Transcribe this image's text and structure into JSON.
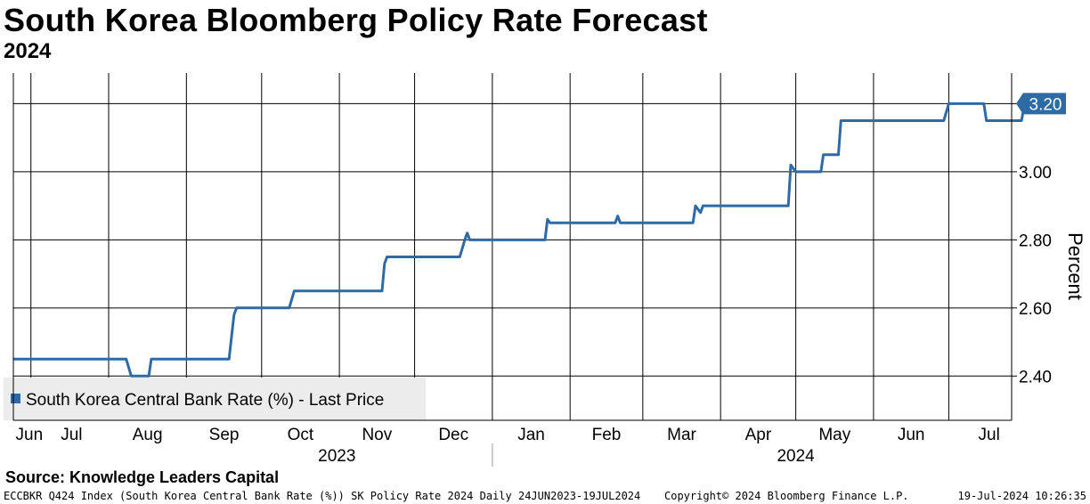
{
  "header": {
    "title": "South Korea Bloomberg Policy Rate Forecast",
    "subtitle": "2024"
  },
  "source": "Source: Knowledge Leaders Capital",
  "footer": {
    "left": "ECCBKR Q424 Index (South Korea Central Bank Rate (%)) SK Policy Rate 2024  Daily 24JUN2023-19JUL2024",
    "center": "Copyright© 2024 Bloomberg Finance L.P.",
    "right": "19-Jul-2024 10:26:35"
  },
  "colors": {
    "line": "#2e6aa4",
    "grid": "#000000",
    "last_label_bg": "#2e6aa4",
    "legend_bg": "#ececec"
  },
  "chart_data": {
    "type": "line",
    "title": "South Korea Bloomberg Policy Rate Forecast",
    "subtitle": "2024",
    "ylabel": "Percent",
    "ylim": [
      2.27,
      3.29
    ],
    "yticks": [
      2.4,
      2.6,
      2.8,
      3.0,
      3.2
    ],
    "ytick_labels": [
      "2.40",
      "2.60",
      "2.80",
      "3.00",
      "3.20"
    ],
    "xlim": [
      "2023-06-24",
      "2024-07-21"
    ],
    "month_ticks": [
      {
        "label": "Jun",
        "date": "2023-07-01"
      },
      {
        "label": "Jul",
        "date": "2023-08-01"
      },
      {
        "label": "Aug",
        "date": "2023-09-01"
      },
      {
        "label": "Sep",
        "date": "2023-10-01"
      },
      {
        "label": "Oct",
        "date": "2023-11-01"
      },
      {
        "label": "Nov",
        "date": "2023-12-01"
      },
      {
        "label": "Dec",
        "date": "2024-01-01"
      },
      {
        "label": "Jan",
        "date": "2024-02-01"
      },
      {
        "label": "Feb",
        "date": "2024-03-01"
      },
      {
        "label": "Mar",
        "date": "2024-04-01"
      },
      {
        "label": "Apr",
        "date": "2024-05-01"
      },
      {
        "label": "May",
        "date": "2024-06-01"
      },
      {
        "label": "Jun",
        "date": "2024-07-01"
      },
      {
        "label": "Jul",
        "date": "2024-07-21"
      }
    ],
    "year_labels": [
      {
        "label": "2023",
        "date": "2023-10-31"
      },
      {
        "label": "2024",
        "date": "2024-05-01"
      }
    ],
    "year_divider_date": "2024-01-01",
    "legend": "South Korea Central Bank Rate (%) - Last Price",
    "last_value_label": "3.20",
    "series": [
      {
        "name": "South Korea Central Bank Rate (%) - Last Price",
        "points": [
          [
            "2023-06-24",
            2.45
          ],
          [
            "2023-08-08",
            2.45
          ],
          [
            "2023-08-10",
            2.4
          ],
          [
            "2023-08-17",
            2.4
          ],
          [
            "2023-08-18",
            2.45
          ],
          [
            "2023-09-18",
            2.45
          ],
          [
            "2023-09-20",
            2.58
          ],
          [
            "2023-09-21",
            2.6
          ],
          [
            "2023-10-12",
            2.6
          ],
          [
            "2023-10-14",
            2.65
          ],
          [
            "2023-11-18",
            2.65
          ],
          [
            "2023-11-19",
            2.73
          ],
          [
            "2023-11-20",
            2.75
          ],
          [
            "2023-12-19",
            2.75
          ],
          [
            "2023-12-21",
            2.8
          ],
          [
            "2023-12-22",
            2.82
          ],
          [
            "2023-12-23",
            2.8
          ],
          [
            "2024-01-22",
            2.8
          ],
          [
            "2024-01-23",
            2.86
          ],
          [
            "2024-01-24",
            2.85
          ],
          [
            "2024-02-19",
            2.85
          ],
          [
            "2024-02-20",
            2.87
          ],
          [
            "2024-02-21",
            2.85
          ],
          [
            "2024-03-21",
            2.85
          ],
          [
            "2024-03-22",
            2.9
          ],
          [
            "2024-03-24",
            2.88
          ],
          [
            "2024-03-25",
            2.9
          ],
          [
            "2024-04-28",
            2.9
          ],
          [
            "2024-04-29",
            3.02
          ],
          [
            "2024-05-01",
            3.0
          ],
          [
            "2024-05-11",
            3.0
          ],
          [
            "2024-05-12",
            3.05
          ],
          [
            "2024-05-18",
            3.05
          ],
          [
            "2024-05-19",
            3.15
          ],
          [
            "2024-06-29",
            3.15
          ],
          [
            "2024-07-01",
            3.2
          ],
          [
            "2024-07-15",
            3.2
          ],
          [
            "2024-07-16",
            3.15
          ],
          [
            "2024-07-30",
            3.15
          ],
          [
            "2024-07-31",
            3.19
          ],
          [
            "2024-08-01",
            3.2
          ]
        ]
      }
    ]
  }
}
